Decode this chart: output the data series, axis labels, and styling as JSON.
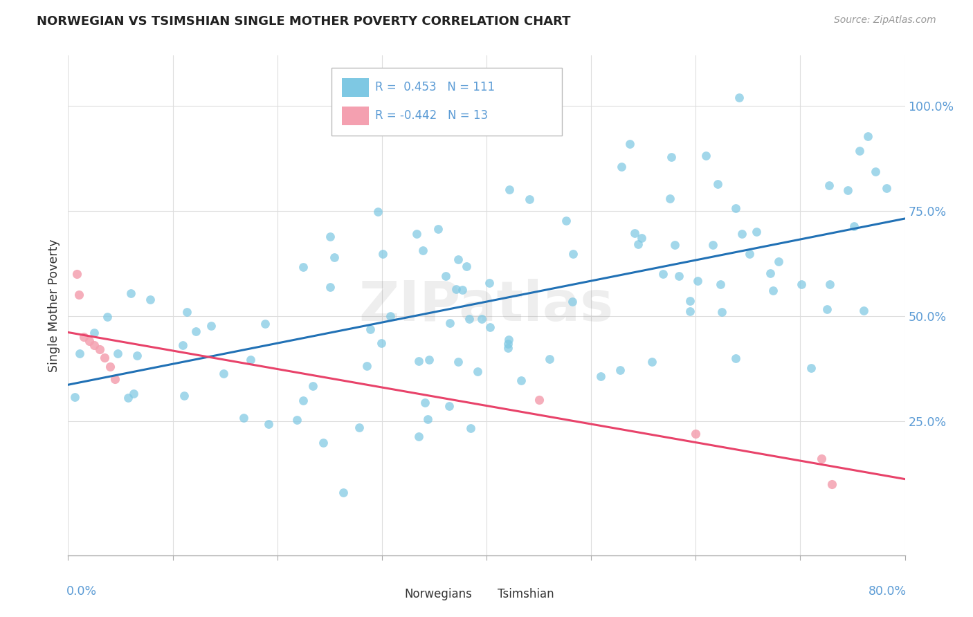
{
  "title": "NORWEGIAN VS TSIMSHIAN SINGLE MOTHER POVERTY CORRELATION CHART",
  "source": "Source: ZipAtlas.com",
  "ylabel": "Single Mother Poverty",
  "xlim": [
    0.0,
    0.8
  ],
  "ylim": [
    -0.07,
    1.12
  ],
  "ytick_values": [
    0.25,
    0.5,
    0.75,
    1.0
  ],
  "ytick_labels": [
    "25.0%",
    "50.0%",
    "75.0%",
    "100.0%"
  ],
  "norwegian_color": "#7ec8e3",
  "tsimshian_color": "#f4a0b0",
  "norwegian_line_color": "#2171b5",
  "tsimshian_line_color": "#e8436a",
  "background_color": "#ffffff",
  "grid_color": "#dddddd",
  "label_color": "#5b9bd5",
  "title_color": "#222222",
  "text_color": "#333333",
  "watermark": "ZIPatlas"
}
